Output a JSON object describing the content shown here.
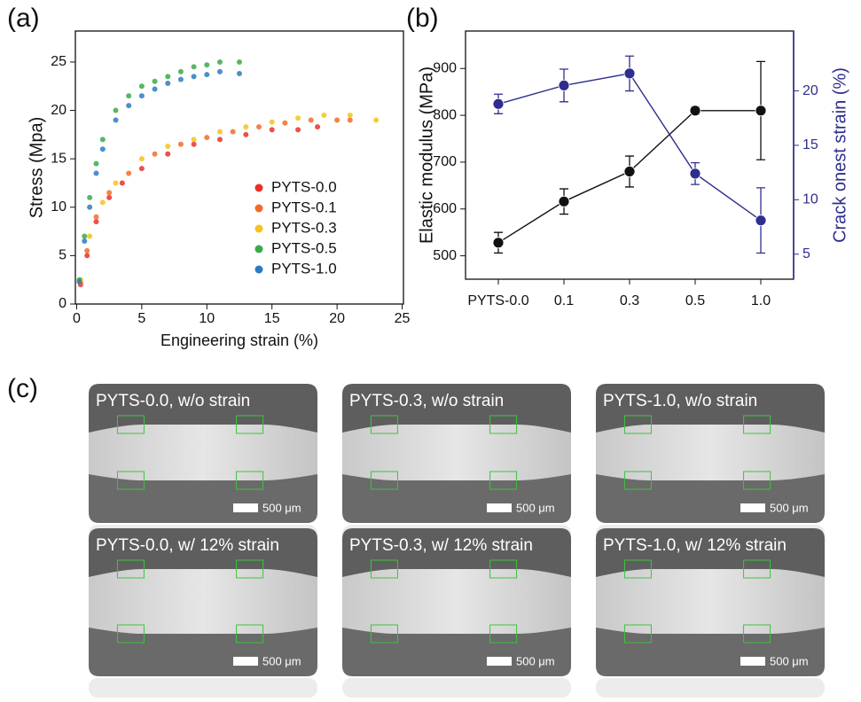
{
  "chart_data": [
    {
      "type": "scatter",
      "panel_label": "(a)",
      "x_label": "Engineering strain (%)",
      "y_label": "Stress (Mpa)",
      "xlim": [
        -0.1,
        25.1
      ],
      "ylim": [
        0,
        28.2
      ],
      "xticks": [
        0,
        5,
        10,
        15,
        20,
        25
      ],
      "yticks": [
        0,
        5,
        10,
        15,
        20,
        25
      ],
      "legend": "right",
      "series": [
        {
          "name": "PYTS-0.0",
          "color": "#e8312a",
          "x": [
            0.3,
            0.8,
            1.5,
            2.5,
            3.5,
            5,
            7,
            9,
            11,
            13,
            15,
            17,
            18.5
          ],
          "values": [
            2,
            5,
            8.5,
            11,
            12.5,
            14,
            15.5,
            16.5,
            17,
            17.5,
            18,
            18,
            18.3
          ]
        },
        {
          "name": "PYTS-0.1",
          "color": "#f26b2a",
          "x": [
            0.3,
            0.8,
            1.5,
            2.5,
            4,
            6,
            8,
            10,
            12,
            14,
            16,
            18,
            20,
            21
          ],
          "values": [
            2.2,
            5.5,
            9,
            11.5,
            13.5,
            15.5,
            16.5,
            17.2,
            17.8,
            18.3,
            18.7,
            19,
            19,
            19
          ]
        },
        {
          "name": "PYTS-0.3",
          "color": "#f5c31a",
          "x": [
            0.3,
            1,
            2,
            3,
            5,
            7,
            9,
            11,
            13,
            15,
            17,
            19,
            21,
            23
          ],
          "values": [
            2.5,
            7,
            10.5,
            12.5,
            15,
            16.3,
            17,
            17.8,
            18.3,
            18.8,
            19.2,
            19.5,
            19.5,
            19
          ]
        },
        {
          "name": "PYTS-0.5",
          "color": "#3aaa4a",
          "x": [
            0.2,
            0.6,
            1,
            1.5,
            2,
            3,
            4,
            5,
            6,
            7,
            8,
            9,
            10,
            11,
            12.5
          ],
          "values": [
            2.5,
            7,
            11,
            14.5,
            17,
            20,
            21.5,
            22.5,
            23,
            23.5,
            24,
            24.5,
            24.7,
            25,
            25
          ]
        },
        {
          "name": "PYTS-1.0",
          "color": "#2b7bc4",
          "x": [
            0.2,
            0.6,
            1,
            1.5,
            2,
            3,
            4,
            5,
            6,
            7,
            8,
            9,
            10,
            11,
            12.5
          ],
          "values": [
            2.3,
            6.5,
            10,
            13.5,
            16,
            19,
            20.5,
            21.5,
            22.2,
            22.8,
            23.2,
            23.5,
            23.7,
            24,
            23.8
          ]
        }
      ]
    },
    {
      "type": "line",
      "panel_label": "(b)",
      "y_label": "Elastic modulus (MPa)",
      "y2_label": "Crack onest strain (%)",
      "categories": [
        "PYTS-0.0",
        "0.1",
        "0.3",
        "0.5",
        "1.0"
      ],
      "ylim": [
        450,
        980
      ],
      "yticks": [
        500,
        600,
        700,
        800,
        900
      ],
      "y2lim": [
        2.7,
        25.5
      ],
      "y2ticks": [
        5,
        10,
        15,
        20
      ],
      "series": [
        {
          "name": "Elastic modulus",
          "color": "#111111",
          "values": [
            528,
            616,
            680,
            810,
            810
          ],
          "errors": [
            22,
            27,
            33,
            8,
            105
          ]
        },
        {
          "name": "Crack onset strain",
          "color": "#2e2e8f",
          "axis": "y2",
          "values": [
            18.8,
            20.5,
            21.6,
            12.4,
            8.1
          ],
          "errors": [
            0.9,
            1.5,
            1.6,
            1.0,
            3.0
          ]
        }
      ]
    }
  ],
  "figure_c": {
    "panel_label": "(c)",
    "images": [
      {
        "label": "PYTS-0.0, w/o strain",
        "scale_bar": "500 μm"
      },
      {
        "label": "PYTS-0.3, w/o strain",
        "scale_bar": "500 μm"
      },
      {
        "label": "PYTS-1.0, w/o strain",
        "scale_bar": "500 μm"
      },
      {
        "label": "PYTS-0.0, w/ 12% strain",
        "scale_bar": "500 μm"
      },
      {
        "label": "PYTS-0.3, w/ 12% strain",
        "scale_bar": "500 μm"
      },
      {
        "label": "PYTS-1.0, w/ 12% strain",
        "scale_bar": "500 μm"
      }
    ]
  }
}
